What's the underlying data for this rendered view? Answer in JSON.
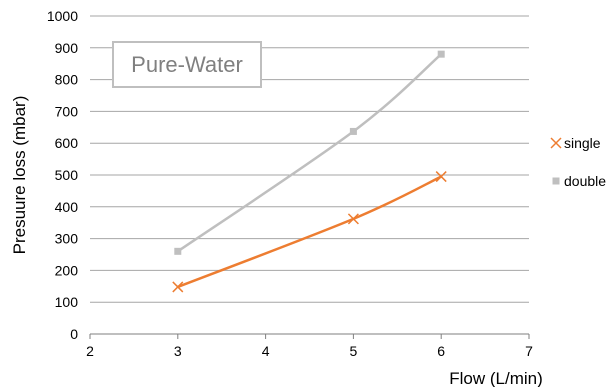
{
  "chart_data": {
    "type": "scatter",
    "title": "",
    "annotation": "Pure-Water",
    "xlabel": "Flow (L/min)",
    "ylabel": "Presuure loss (mbar)",
    "xlim": [
      2,
      7
    ],
    "ylim": [
      0,
      1000
    ],
    "xticks": [
      "2",
      "3",
      "4",
      "5",
      "6",
      "7"
    ],
    "yticks": [
      "0",
      "100",
      "200",
      "300",
      "400",
      "500",
      "600",
      "700",
      "800",
      "900",
      "1000"
    ],
    "grid": "horizontal",
    "legend_position": "right",
    "series": [
      {
        "name": "single",
        "marker": "x",
        "color": "#ed7d31",
        "x": [
          3,
          5,
          6
        ],
        "y": [
          148,
          362,
          495
        ]
      },
      {
        "name": "double",
        "marker": "square",
        "color": "#bfbfbf",
        "x": [
          3,
          5,
          6
        ],
        "y": [
          260,
          637,
          880
        ]
      }
    ]
  }
}
